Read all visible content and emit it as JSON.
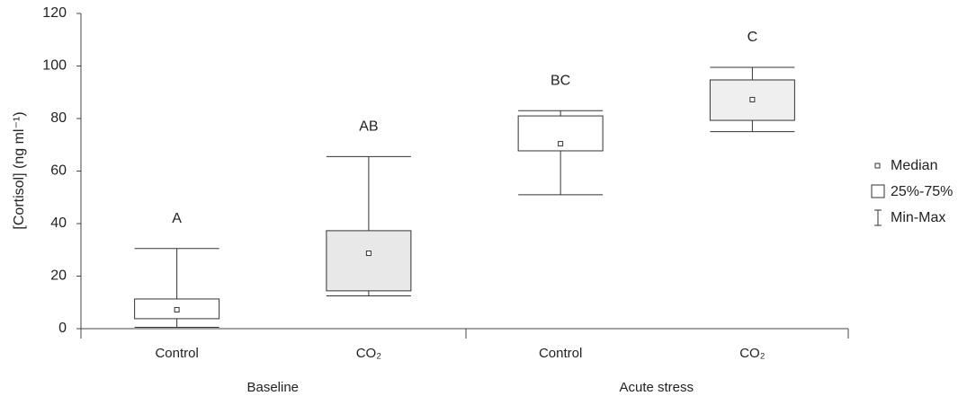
{
  "chart_data": {
    "type": "box",
    "y_label": "[Cortisol] (ng ml⁻¹)",
    "categories": [
      "Control",
      "CO₂",
      "Control",
      "CO₂"
    ],
    "groups": [
      "Baseline",
      "Acute stress"
    ],
    "min": [
      0.5,
      12.5,
      51,
      75
    ],
    "q1": [
      3.8,
      14.4,
      67.7,
      79.3
    ],
    "median": [
      7.2,
      28.7,
      70.4,
      87.2
    ],
    "q3": [
      11.3,
      37.3,
      81,
      94.7
    ],
    "max": [
      30.5,
      65.5,
      83,
      99.5
    ],
    "annotations": [
      "A",
      "AB",
      "BC",
      "C"
    ],
    "fills": [
      "#ffffff",
      "#e8e8e8",
      "#ffffff",
      "#efefef"
    ],
    "ylim": [
      0,
      120
    ],
    "yticks": [
      0,
      20,
      40,
      60,
      80,
      100,
      120
    ],
    "legend": {
      "median": "Median",
      "box": "25%-75%",
      "whisker": "Min-Max"
    }
  }
}
